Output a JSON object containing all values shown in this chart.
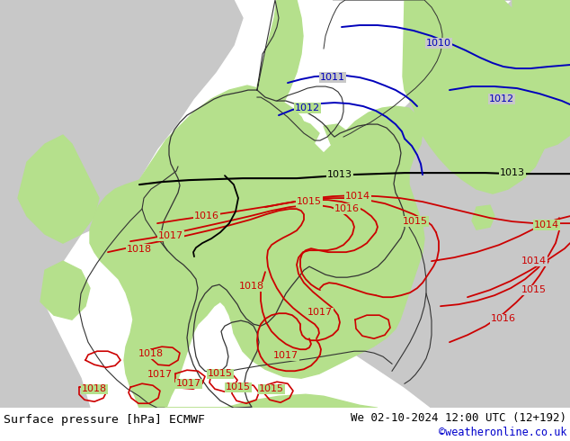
{
  "title_left": "Surface pressure [hPa] ECMWF",
  "title_right": "We 02-10-2024 12:00 UTC (12+192)",
  "credit": "©weatheronline.co.uk",
  "bg_color": "#b5e08c",
  "land_color": "#b5e08c",
  "sea_color": "#c8c8c8",
  "border_color": "#333333",
  "bottom_bar_color": "#ffffff",
  "bottom_text_color": "#000000",
  "credit_color": "#0000cc",
  "isobar_red_color": "#cc0000",
  "isobar_blue_color": "#0000bb",
  "isobar_black_color": "#000000",
  "fig_width": 6.34,
  "fig_height": 4.9,
  "dpi": 100
}
